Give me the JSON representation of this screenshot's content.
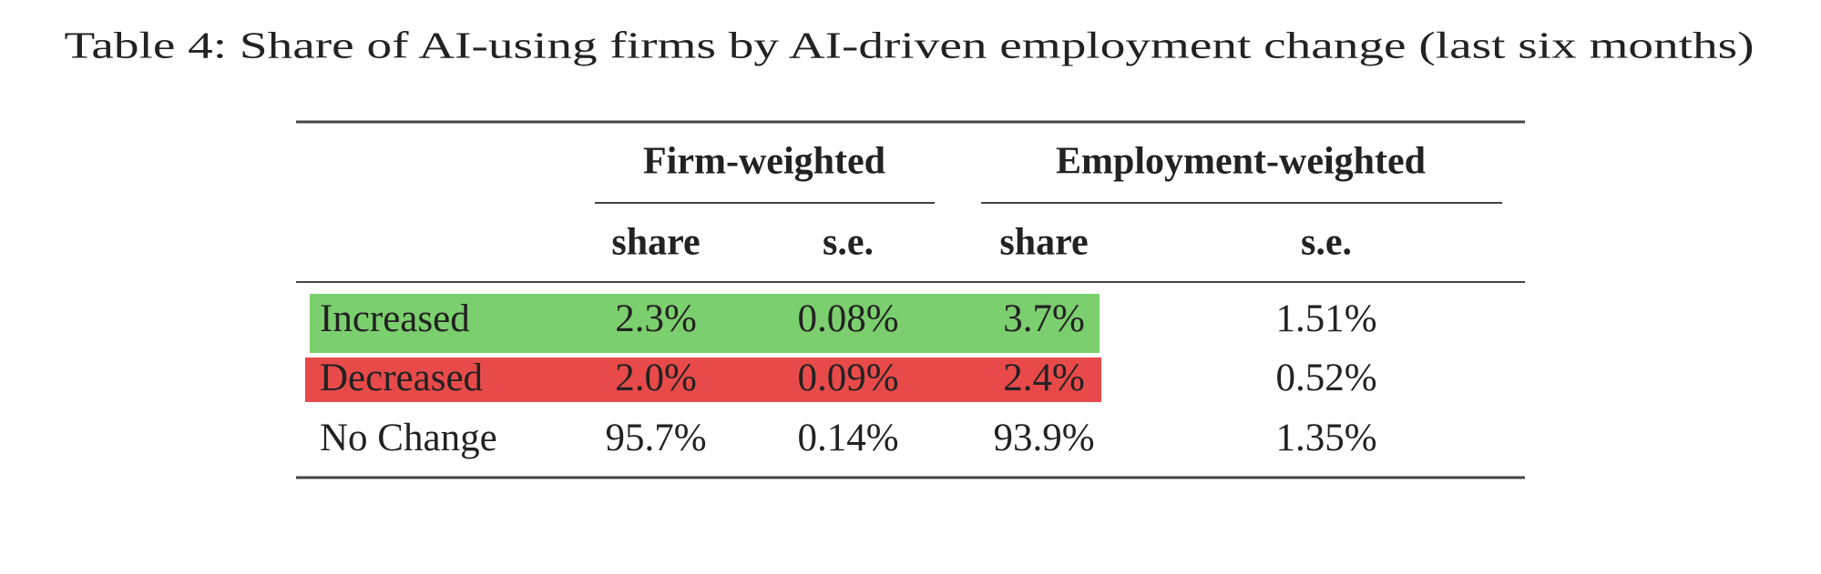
{
  "caption": "Table 4: Share of AI-using firms by AI-driven employment change (last six months)",
  "table": {
    "group_headers": [
      "Firm-weighted",
      "Employment-weighted"
    ],
    "columns": [
      "share",
      "s.e.",
      "share",
      "s.e."
    ],
    "rows": [
      [
        "Increased",
        "2.3%",
        "0.08%",
        "3.7%",
        "1.51%"
      ],
      [
        "Decreased",
        "2.0%",
        "0.09%",
        "2.4%",
        "0.52%"
      ],
      [
        "No Change",
        "95.7%",
        "0.14%",
        "93.9%",
        "1.35%"
      ]
    ]
  }
}
